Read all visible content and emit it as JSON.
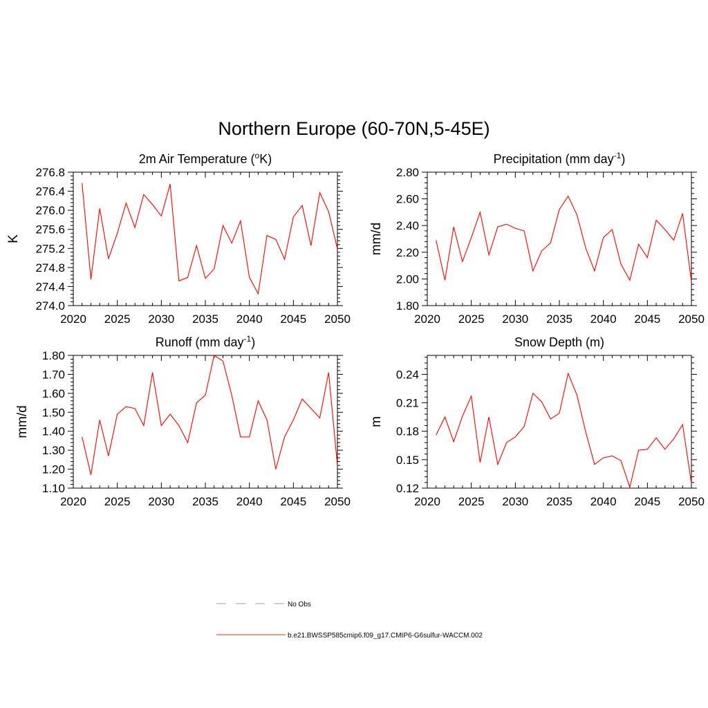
{
  "main_title": "Northern Europe (60-70N,5-45E)",
  "legend": [
    {
      "label": "No Obs",
      "color": "#aaaadd",
      "style": "dashed"
    },
    {
      "label": "b.e21.BWSSP585cmip6.f09_g17.CMIP6-G6sulfur-WACCM.002",
      "color": "#ff5555",
      "style": "solid"
    }
  ],
  "chart_data": [
    {
      "type": "line",
      "title": "2m Air Temperature",
      "title_parts": {
        "pre": "2m Air Temperature (",
        "sup": "o",
        "post": "K)"
      },
      "ylabel": "K",
      "xlim": [
        2020,
        2050
      ],
      "xticks": [
        2020,
        2025,
        2030,
        2035,
        2040,
        2045,
        2050
      ],
      "ylim": [
        274.0,
        276.8
      ],
      "yticks": [
        "274.0",
        "274.4",
        "274.8",
        "275.2",
        "275.6",
        "276.0",
        "276.4",
        "276.8"
      ],
      "series": [
        {
          "color": "#ff0000",
          "x": [
            2021,
            2022,
            2023,
            2024,
            2025,
            2026,
            2027,
            2028,
            2029,
            2030,
            2031,
            2032,
            2033,
            2034,
            2035,
            2036,
            2037,
            2038,
            2039,
            2040,
            2041,
            2042,
            2043,
            2044,
            2045,
            2046,
            2047,
            2048,
            2049,
            2050
          ],
          "values": [
            276.57,
            274.55,
            276.04,
            274.98,
            275.52,
            276.15,
            275.64,
            276.33,
            276.12,
            275.88,
            276.55,
            274.52,
            274.59,
            275.26,
            274.57,
            274.77,
            275.68,
            275.31,
            275.78,
            274.59,
            274.25,
            275.47,
            275.39,
            274.97,
            275.86,
            276.1,
            275.26,
            276.37,
            275.97,
            275.19
          ]
        }
      ]
    },
    {
      "type": "line",
      "title": "Precipitation (mm day-1)",
      "title_parts": {
        "pre": "Precipitation (mm day",
        "sup": "-1",
        "post": ")"
      },
      "ylabel": "mm/d",
      "xlim": [
        2020,
        2050
      ],
      "xticks": [
        2020,
        2025,
        2030,
        2035,
        2040,
        2045,
        2050
      ],
      "ylim": [
        1.8,
        2.8
      ],
      "yticks": [
        "1.80",
        "2.00",
        "2.20",
        "2.40",
        "2.60",
        "2.80"
      ],
      "series": [
        {
          "color": "#ff0000",
          "x": [
            2021,
            2022,
            2023,
            2024,
            2025,
            2026,
            2027,
            2028,
            2029,
            2030,
            2031,
            2032,
            2033,
            2034,
            2035,
            2036,
            2037,
            2038,
            2039,
            2040,
            2041,
            2042,
            2043,
            2044,
            2045,
            2046,
            2047,
            2048,
            2049,
            2050
          ],
          "values": [
            2.29,
            1.99,
            2.39,
            2.13,
            2.31,
            2.5,
            2.18,
            2.39,
            2.41,
            2.38,
            2.36,
            2.06,
            2.21,
            2.27,
            2.52,
            2.62,
            2.48,
            2.23,
            2.06,
            2.31,
            2.37,
            2.11,
            1.99,
            2.26,
            2.16,
            2.44,
            2.37,
            2.29,
            2.49,
            1.98
          ]
        }
      ]
    },
    {
      "type": "line",
      "title": "Runoff (mm day-1)",
      "title_parts": {
        "pre": "Runoff (mm day",
        "sup": "-1",
        "post": ")"
      },
      "ylabel": "mm/d",
      "xlim": [
        2020,
        2050
      ],
      "xticks": [
        2020,
        2025,
        2030,
        2035,
        2040,
        2045,
        2050
      ],
      "ylim": [
        1.1,
        1.8
      ],
      "yticks": [
        "1.10",
        "1.20",
        "1.30",
        "1.40",
        "1.50",
        "1.60",
        "1.70",
        "1.80"
      ],
      "series": [
        {
          "color": "#ff0000",
          "x": [
            2021,
            2022,
            2023,
            2024,
            2025,
            2026,
            2027,
            2028,
            2029,
            2030,
            2031,
            2032,
            2033,
            2034,
            2035,
            2036,
            2037,
            2038,
            2039,
            2040,
            2041,
            2042,
            2043,
            2044,
            2045,
            2046,
            2047,
            2048,
            2049,
            2050
          ],
          "values": [
            1.37,
            1.17,
            1.46,
            1.27,
            1.49,
            1.53,
            1.52,
            1.43,
            1.71,
            1.43,
            1.49,
            1.43,
            1.34,
            1.55,
            1.59,
            1.8,
            1.77,
            1.59,
            1.37,
            1.37,
            1.56,
            1.46,
            1.2,
            1.37,
            1.46,
            1.57,
            1.52,
            1.47,
            1.71,
            1.22
          ]
        }
      ]
    },
    {
      "type": "line",
      "title": "Snow Depth (m)",
      "title_parts": {
        "pre": "Snow Depth (m)",
        "sup": "",
        "post": ""
      },
      "ylabel": "m",
      "xlim": [
        2020,
        2050
      ],
      "xticks": [
        2020,
        2025,
        2030,
        2035,
        2040,
        2045,
        2050
      ],
      "ylim": [
        0.12,
        0.26
      ],
      "yticks": [
        "0.12",
        "0.15",
        "0.18",
        "0.21",
        "0.24"
      ],
      "series": [
        {
          "color": "#ff0000",
          "x": [
            2021,
            2022,
            2023,
            2024,
            2025,
            2026,
            2027,
            2028,
            2029,
            2030,
            2031,
            2032,
            2033,
            2034,
            2035,
            2036,
            2037,
            2038,
            2039,
            2040,
            2041,
            2042,
            2043,
            2044,
            2045,
            2046,
            2047,
            2048,
            2049,
            2050
          ],
          "values": [
            0.176,
            0.195,
            0.169,
            0.196,
            0.217,
            0.147,
            0.195,
            0.145,
            0.168,
            0.174,
            0.185,
            0.22,
            0.211,
            0.193,
            0.199,
            0.241,
            0.218,
            0.179,
            0.145,
            0.152,
            0.154,
            0.149,
            0.121,
            0.16,
            0.161,
            0.173,
            0.161,
            0.172,
            0.187,
            0.125
          ]
        }
      ]
    }
  ]
}
